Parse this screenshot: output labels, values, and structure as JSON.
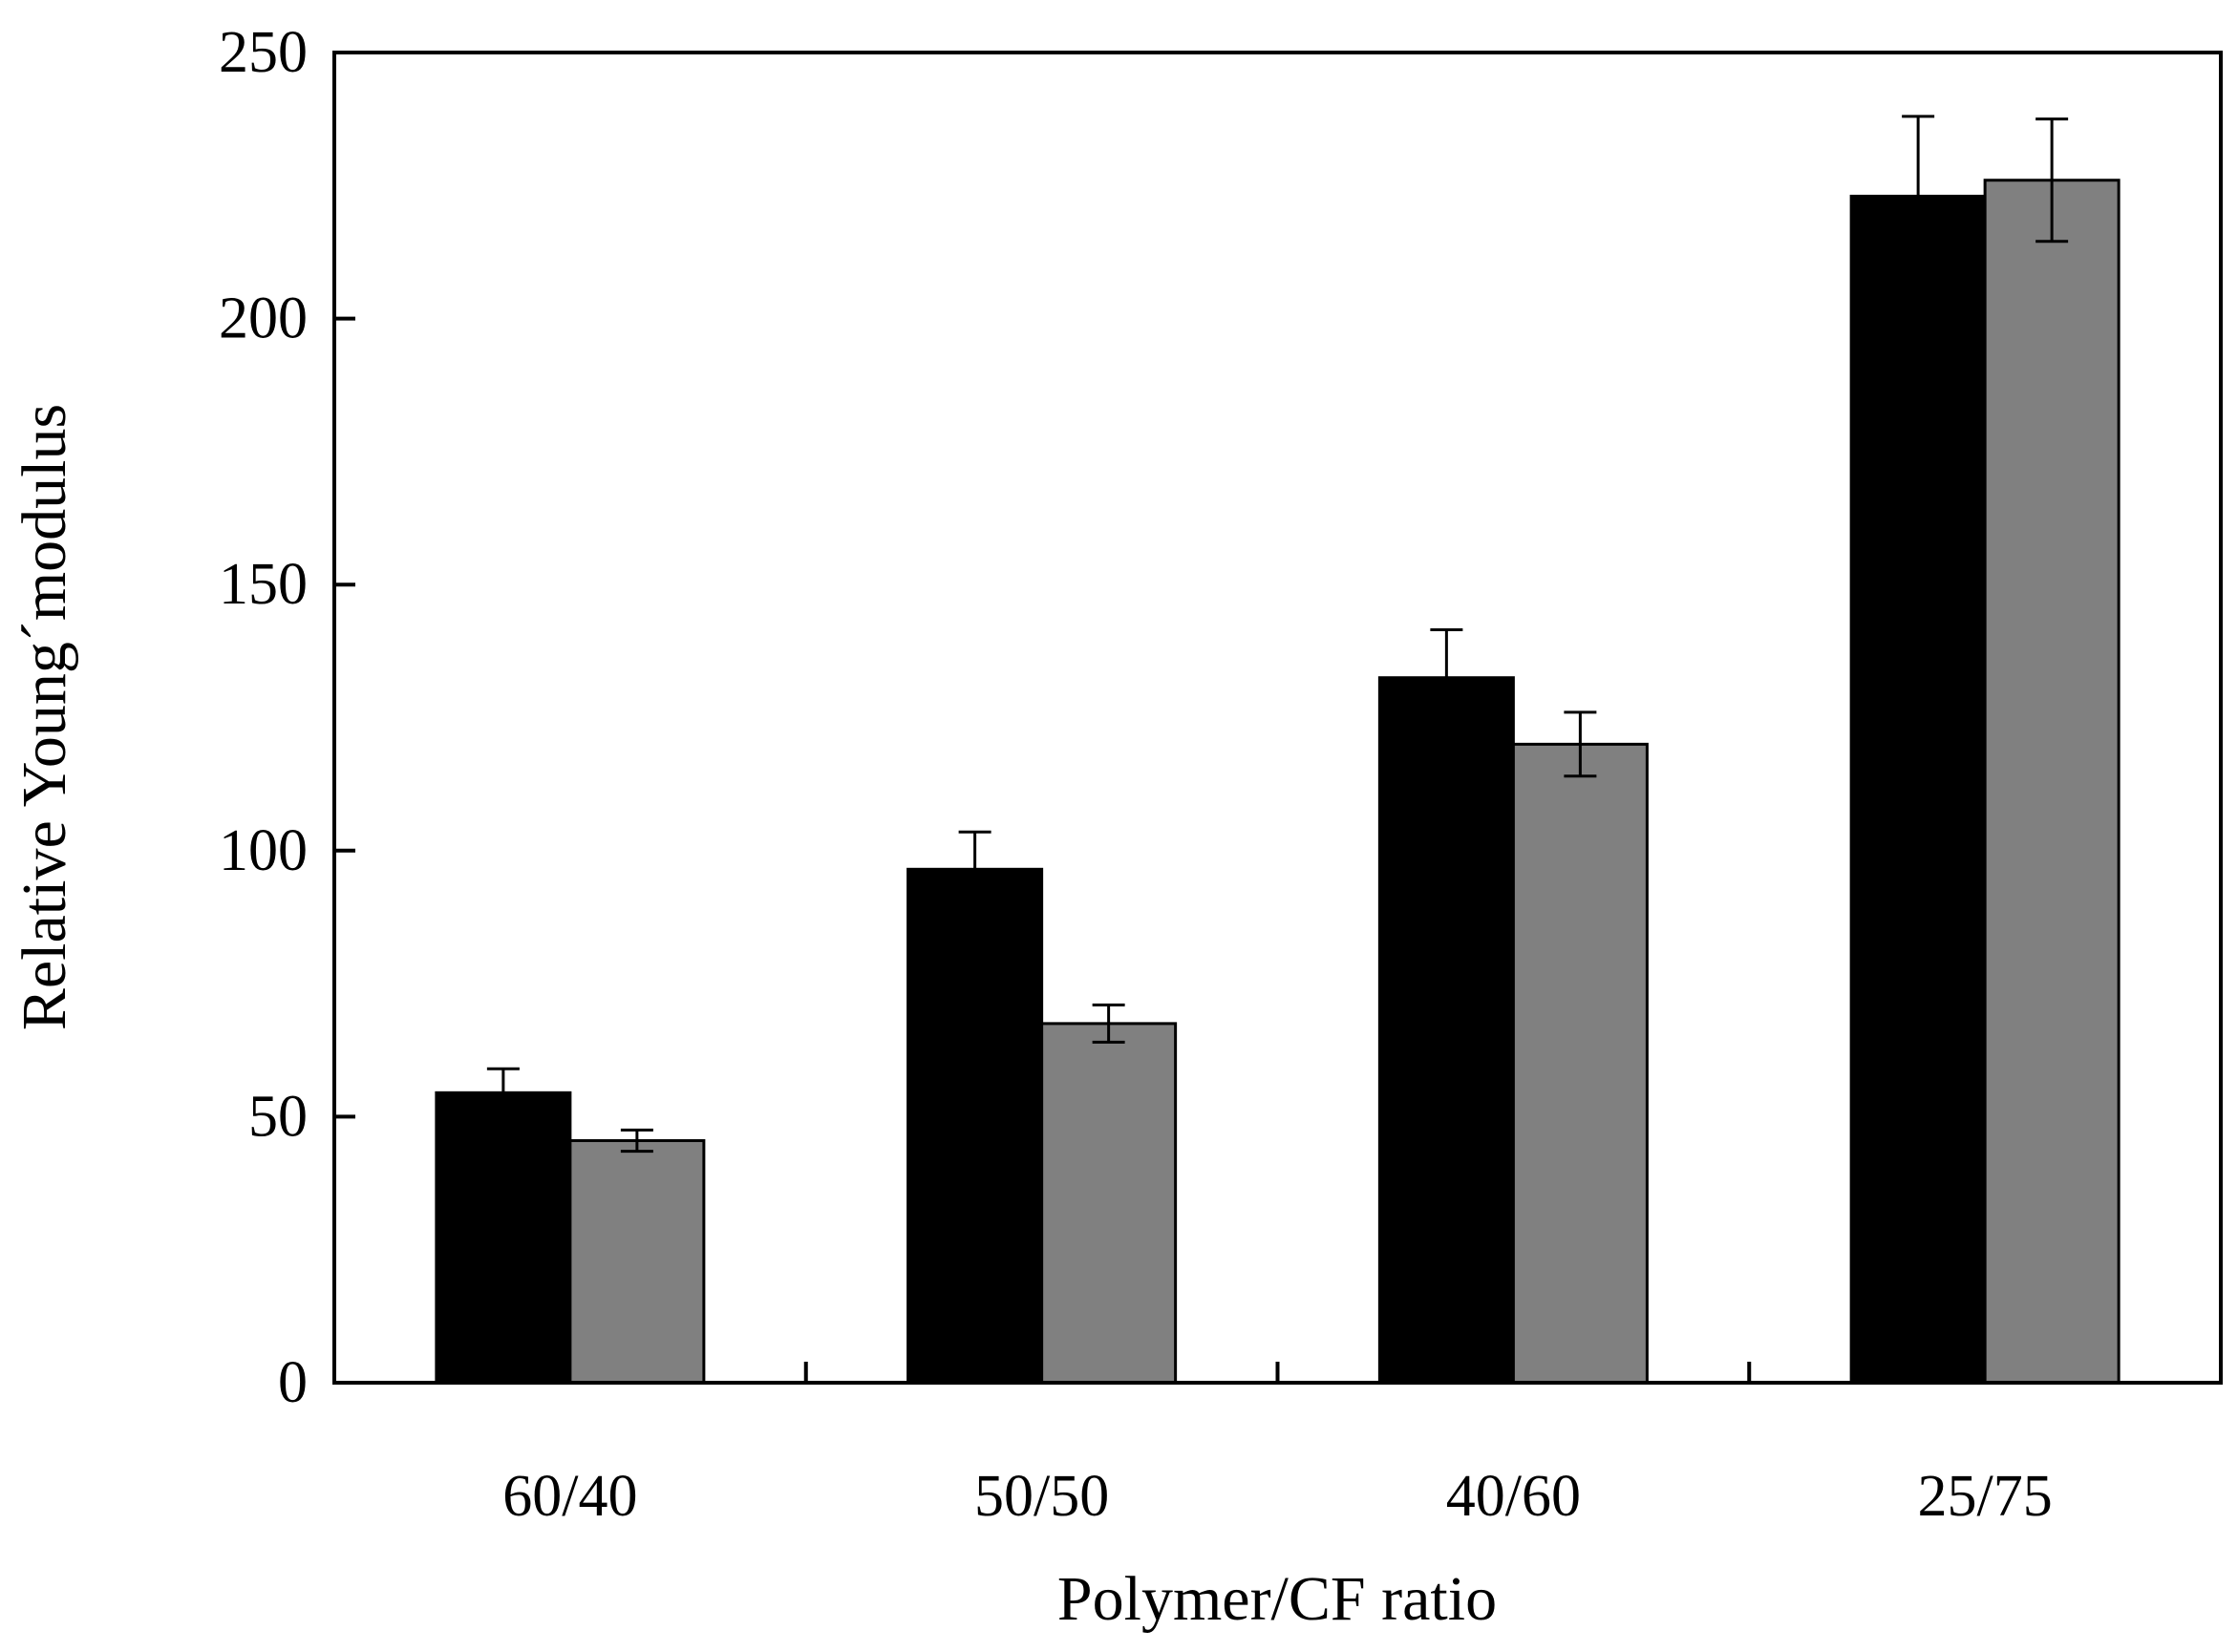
{
  "chart_data": {
    "type": "bar",
    "xlabel": "Polymer/CF ratio",
    "ylabel": "Relative Young´modulus",
    "categories": [
      "60/40",
      "50/50",
      "40/60",
      "25/75"
    ],
    "ylim": [
      0,
      250
    ],
    "yticks": [
      0,
      50,
      100,
      150,
      200,
      250
    ],
    "grid": false,
    "legend": "none",
    "series": [
      {
        "color": "#000000",
        "values": [
          54.5,
          96.5,
          132.5,
          223
        ],
        "errors": [
          4.5,
          7,
          9,
          15
        ]
      },
      {
        "color": "#808080",
        "values": [
          45.5,
          67.5,
          120,
          226
        ],
        "errors": [
          2,
          3.5,
          6,
          11.5
        ]
      }
    ]
  }
}
